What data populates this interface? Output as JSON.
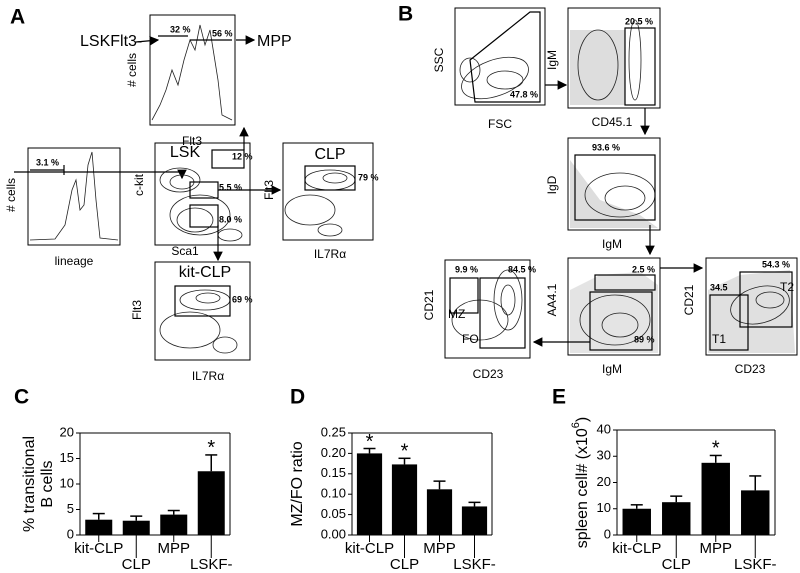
{
  "panel_a": {
    "label": "A",
    "flt3_hist": {
      "gate_in": "LSKFlt3-",
      "gate_out": "MPP",
      "pct_left": "32 %",
      "pct_right": "56 %",
      "y_label": "# cells",
      "x_label": "Flt3"
    },
    "lineage_hist": {
      "y_label": "# cells",
      "x_label": "lineage",
      "pct": "3.1 %"
    },
    "lsk_plot": {
      "y_label": "c-kit",
      "x_label": "Sca1",
      "gate": "LSK",
      "pct_lsk": "12 %",
      "pct_mid": "5.5 %",
      "pct_low": "8.0 %"
    },
    "clp_plot": {
      "gate": "CLP",
      "pct": "79 %",
      "y_label": "Flt3",
      "x_label": "IL7Rα"
    },
    "kitclp_plot": {
      "gate": "kit-CLP",
      "pct": "69 %",
      "y_label": "Flt3",
      "x_label": "IL7Rα"
    }
  },
  "panel_b": {
    "label": "B",
    "scatter_plot": {
      "y_label": "SSC",
      "x_label": "FSC",
      "pct": "47.8 %"
    },
    "cd45_plot": {
      "y_label": "IgM",
      "x_label": "CD45.1",
      "pct": "20.5 %"
    },
    "igd_plot": {
      "pct": "93.6 %",
      "y_label": "IgD",
      "x_label": "IgM"
    },
    "aa41_plot": {
      "y_label": "AA4.1",
      "x_label": "IgM",
      "pct_top": "2.5 %",
      "pct_bottom": "89 %"
    },
    "transitional_plot": {
      "y_label": "CD21",
      "x_label": "CD23",
      "pct_t2": "54.3 %",
      "pct_left": "34.5",
      "gate_t2": "T2",
      "gate_t1": "T1"
    },
    "mzfo_plot": {
      "y_label": "CD21",
      "x_label": "CD23",
      "pct_mz": "9.9 %",
      "pct_fo": "84.5 %",
      "gate_mz": "MZ",
      "gate_fo": "FO"
    }
  },
  "chart_data": [
    {
      "type": "bar",
      "panel_label": "C",
      "y_label": [
        "% transitional",
        "B cells"
      ],
      "categories": [
        "kit-CLP",
        "CLP",
        "MPP",
        "LSKF-"
      ],
      "values": [
        3,
        2.8,
        4,
        12.5
      ],
      "errors": [
        1.2,
        0.9,
        0.8,
        3.2
      ],
      "color": "#000000",
      "ylim": [
        0,
        20
      ],
      "yticks": [
        0,
        5,
        10,
        15,
        20
      ],
      "grid": false,
      "annotations": [
        {
          "text": "*",
          "category": "LSKF-"
        }
      ]
    },
    {
      "type": "bar",
      "panel_label": "D",
      "y_label": [
        "MZ/FO ratio"
      ],
      "categories": [
        "kit-CLP",
        "CLP",
        "MPP",
        "LSKF-"
      ],
      "values": [
        0.2,
        0.173,
        0.112,
        0.07
      ],
      "errors": [
        0.012,
        0.015,
        0.02,
        0.01
      ],
      "color": "#000000",
      "ylim": [
        0,
        0.25
      ],
      "yticks": [
        {
          "value": 0,
          "label": "0.00"
        },
        0.05,
        {
          "value": 0.1,
          "label": "0.10"
        },
        0.15,
        {
          "value": 0.2,
          "label": "0.20"
        },
        0.25
      ],
      "grid": false,
      "annotations": [
        {
          "text": "*",
          "category": "kit-CLP"
        },
        {
          "text": "*",
          "category": "CLP"
        }
      ]
    },
    {
      "type": "bar",
      "panel_label": "E",
      "y_label": [
        "spleen cell# (x10"
      ],
      "y_label_sup": "6",
      "y_label_tail": ")",
      "categories": [
        "kit-CLP",
        "CLP",
        "MPP",
        "LSKF-"
      ],
      "values": [
        10,
        12.5,
        27.5,
        17
      ],
      "errors": [
        1.5,
        2.3,
        2.8,
        5.5
      ],
      "color": "#000000",
      "ylim": [
        0,
        40
      ],
      "yticks": [
        0,
        10,
        20,
        30,
        40
      ],
      "grid": false,
      "annotations": [
        {
          "text": "*",
          "category": "MPP"
        }
      ]
    }
  ]
}
